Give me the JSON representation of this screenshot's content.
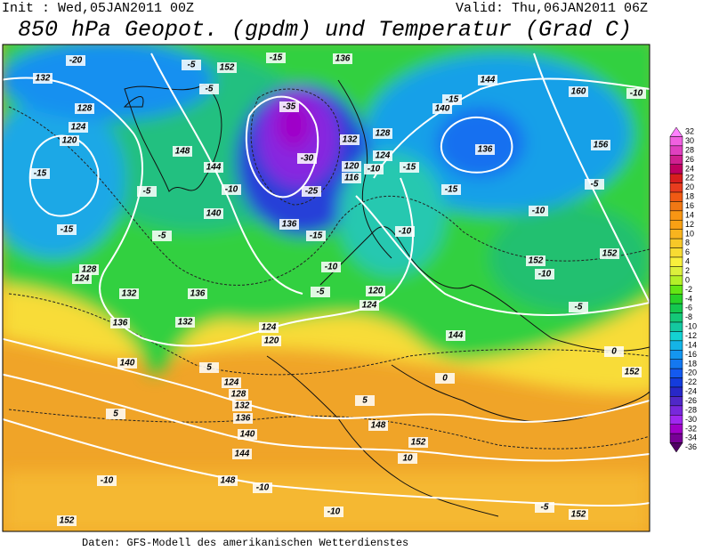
{
  "header": {
    "init": "Init : Wed,05JAN2011 00Z",
    "valid": "Valid: Thu,06JAN2011 06Z",
    "title": "850 hPa Geopot. (gpdm) und Temperatur (Grad C)"
  },
  "footer": "Daten: GFS-Modell des amerikanischen Wetterdienstes",
  "colorbar": {
    "ticks": [
      32,
      30,
      28,
      26,
      24,
      22,
      20,
      18,
      16,
      14,
      12,
      10,
      8,
      6,
      4,
      2,
      0,
      -2,
      -4,
      -6,
      -8,
      -10,
      -12,
      -14,
      -16,
      -18,
      -20,
      -22,
      -24,
      -26,
      -28,
      -30,
      -32,
      -34,
      -36
    ],
    "colors": [
      "#ff80ff",
      "#f060e0",
      "#e040c0",
      "#d02090",
      "#c00060",
      "#d81e1e",
      "#e83c1e",
      "#f05a14",
      "#f07814",
      "#f89614",
      "#f8a014",
      "#f8b41e",
      "#f8c828",
      "#f8dc32",
      "#f8f03c",
      "#dcf03c",
      "#b4f028",
      "#64e614",
      "#28d228",
      "#14c850",
      "#14c878",
      "#14c8a0",
      "#14d2d2",
      "#14b4e6",
      "#1496f0",
      "#1478f0",
      "#145af0",
      "#143cdc",
      "#2828c8",
      "#5028c8",
      "#7828dc",
      "#a028f0",
      "#a000c8",
      "#780096",
      "#500064"
    ]
  },
  "temperature_labels": [
    -20,
    -15,
    -5,
    -5,
    -15,
    -15,
    -5,
    -5,
    -10,
    -35,
    -30,
    -25,
    -15,
    -10,
    -5,
    -10,
    -15,
    -10,
    -15,
    -15,
    -10,
    -10,
    -5,
    -10,
    -5,
    5,
    5,
    5,
    -10,
    -10,
    -10,
    10,
    -5,
    0,
    0
  ],
  "geopotential_labels": [
    132,
    128,
    124,
    120,
    148,
    144,
    140,
    136,
    132,
    128,
    124,
    136,
    140,
    132,
    124,
    120,
    124,
    128,
    132,
    136,
    140,
    144,
    148,
    148,
    152,
    152,
    152,
    152,
    152,
    152,
    156,
    160,
    144,
    140,
    136,
    136,
    120,
    124,
    144,
    128,
    124,
    120,
    116,
    152,
    136,
    132
  ]
}
